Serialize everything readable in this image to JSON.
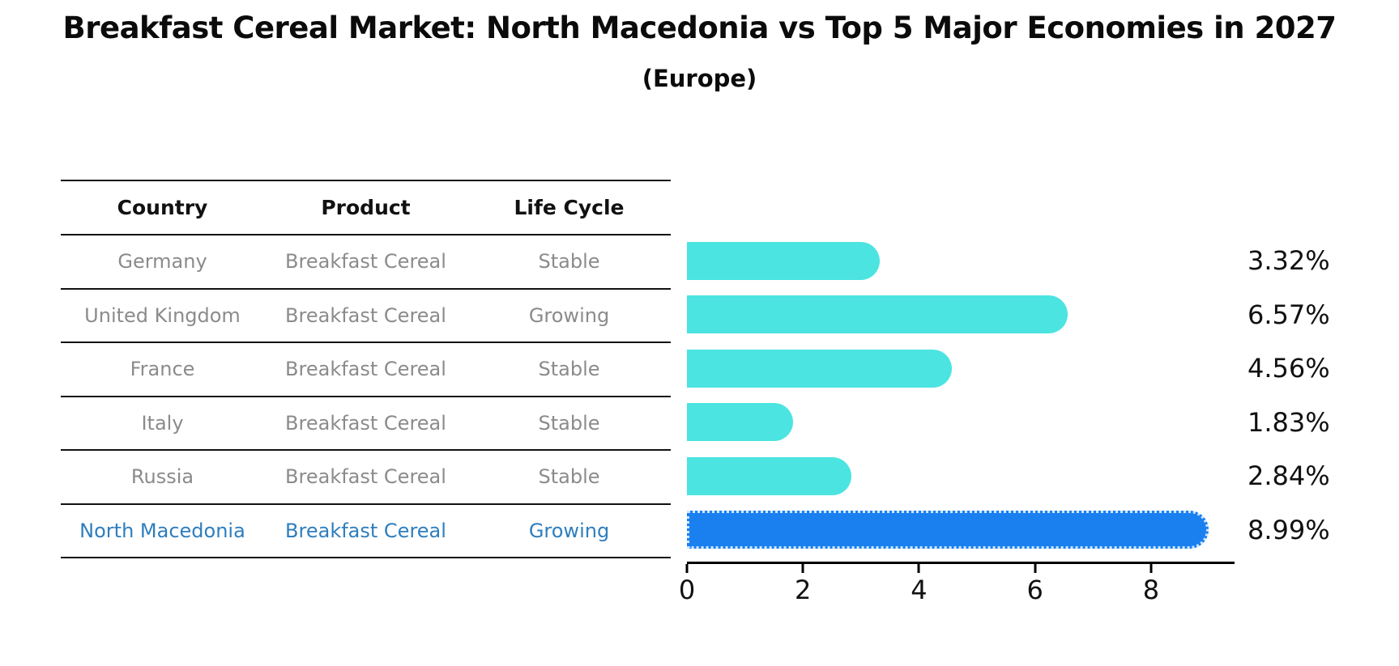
{
  "header": {
    "title": "Breakfast Cereal Market: North Macedonia vs Top 5 Major Economies in 2027",
    "subtitle": "(Europe)"
  },
  "table": {
    "columns": [
      "Country",
      "Product",
      "Life Cycle"
    ],
    "rows": [
      {
        "country": "Germany",
        "product": "Breakfast Cereal",
        "life_cycle": "Stable",
        "highlight": false
      },
      {
        "country": "United Kingdom",
        "product": "Breakfast Cereal",
        "life_cycle": "Growing",
        "highlight": false
      },
      {
        "country": "France",
        "product": "Breakfast Cereal",
        "life_cycle": "Stable",
        "highlight": false
      },
      {
        "country": "Italy",
        "product": "Breakfast Cereal",
        "life_cycle": "Stable",
        "highlight": false
      },
      {
        "country": "Russia",
        "product": "Breakfast Cereal",
        "life_cycle": "Stable",
        "highlight": false
      },
      {
        "country": "North Macedonia",
        "product": "Breakfast Cereal",
        "life_cycle": "Growing",
        "highlight": true
      }
    ]
  },
  "chart_data": {
    "type": "bar",
    "orientation": "horizontal",
    "title": "Breakfast Cereal Market: North Macedonia vs Top 5 Major Economies in 2027 (Europe)",
    "categories": [
      "Germany",
      "United Kingdom",
      "France",
      "Italy",
      "Russia",
      "North Macedonia"
    ],
    "values": [
      3.32,
      6.57,
      4.56,
      1.83,
      2.84,
      8.99
    ],
    "value_labels": [
      "3.32%",
      "6.57%",
      "4.56%",
      "1.83%",
      "2.84%",
      "8.99%"
    ],
    "xlabel": "",
    "ylabel": "",
    "xlim": [
      0,
      9.44
    ],
    "x_ticks": [
      0,
      2,
      4,
      6,
      8
    ],
    "x_tick_labels": [
      "0",
      "2",
      "4",
      "6",
      "8"
    ],
    "grid": false,
    "legend": false,
    "highlight_index": 5
  },
  "colors": {
    "bar-cyan": "#4be4e1",
    "bar-blue": "#1a80f0",
    "hl-text": "#2e7ebe",
    "text-gray": "#8b8b8b"
  }
}
